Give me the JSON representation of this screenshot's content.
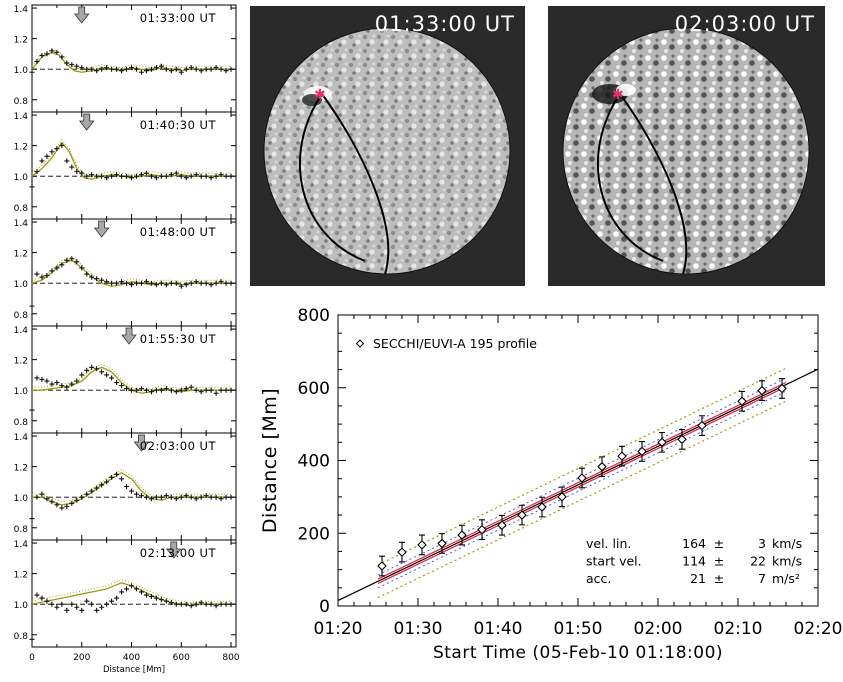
{
  "colors": {
    "profile_marker": "#111111",
    "fit_curve": "#9a9a10",
    "arrow": "#a8a8a8",
    "fit_line": "#000000",
    "band_red": "#e0304a",
    "band_blue": "#4060d0",
    "band_olive": "#9a9a10",
    "sun_background": "#2a2a2a",
    "source_marker": "#e8306a"
  },
  "images": [
    {
      "timestamp": "01:33:00 UT"
    },
    {
      "timestamp": "02:03:00 UT"
    }
  ],
  "chart_data": [
    {
      "type": "scatter",
      "panel": "profile",
      "timestamp": "01:33:00 UT",
      "xlim": [
        0,
        820
      ],
      "ylim": [
        0.72,
        1.42
      ],
      "yticks": [
        "1.4",
        "1.2",
        "1.0",
        "0.8"
      ],
      "xticks": [],
      "xlabel": "",
      "arrow_x": 200,
      "points_x": [
        0,
        20,
        40,
        60,
        80,
        100,
        120,
        140,
        160,
        180,
        200,
        220,
        240,
        260,
        280,
        300,
        320,
        340,
        360,
        380,
        400,
        420,
        440,
        460,
        480,
        500,
        520,
        540,
        560,
        580,
        600,
        620,
        640,
        660,
        680,
        700,
        720,
        740,
        760,
        780,
        800
      ],
      "points_y": [
        0.98,
        1.05,
        1.09,
        1.1,
        1.12,
        1.11,
        1.08,
        1.04,
        1.03,
        1.02,
        1.01,
        1.0,
        1.0,
        0.99,
        1.0,
        1.01,
        1.0,
        1.0,
        0.99,
        1.0,
        1.01,
        1.0,
        0.98,
        0.99,
        1.0,
        1.01,
        1.02,
        1.0,
        0.99,
        1.0,
        0.98,
        1.0,
        1.01,
        1.0,
        0.99,
        1.0,
        1.0,
        1.01,
        1.0,
        0.99,
        1.0
      ],
      "fit_x": [
        0,
        40,
        80,
        110,
        140,
        170,
        200,
        240,
        280,
        320,
        360,
        400,
        440,
        480,
        520,
        560,
        600,
        640,
        680,
        720,
        760,
        800
      ],
      "fit_y": [
        1.0,
        1.08,
        1.11,
        1.09,
        1.03,
        0.99,
        0.98,
        0.99,
        1.01,
        1.0,
        0.99,
        1.01,
        1.0,
        0.99,
        1.01,
        1.0,
        0.99,
        1.0,
        1.0,
        1.0,
        1.0,
        1.0
      ]
    },
    {
      "type": "scatter",
      "panel": "profile",
      "timestamp": "01:40:30 UT",
      "xlim": [
        0,
        820
      ],
      "ylim": [
        0.72,
        1.42
      ],
      "yticks": [
        "1.4",
        "1.2",
        "1.0",
        "0.8"
      ],
      "xticks": [],
      "xlabel": "",
      "arrow_x": 220,
      "points_x": [
        0,
        20,
        40,
        60,
        80,
        100,
        120,
        140,
        160,
        180,
        200,
        220,
        240,
        260,
        280,
        300,
        320,
        340,
        360,
        380,
        400,
        420,
        440,
        460,
        480,
        500,
        520,
        540,
        560,
        580,
        600,
        620,
        640,
        660,
        680,
        700,
        720,
        740,
        760,
        780,
        800
      ],
      "points_y": [
        0.93,
        1.03,
        1.1,
        1.13,
        1.16,
        1.18,
        1.2,
        1.1,
        1.06,
        1.03,
        1.02,
        1.0,
        1.01,
        1.0,
        1.0,
        0.99,
        1.0,
        1.01,
        1.0,
        1.0,
        0.99,
        1.0,
        1.01,
        1.02,
        1.0,
        0.99,
        1.0,
        1.0,
        1.01,
        1.02,
        1.0,
        0.99,
        1.0,
        1.01,
        1.0,
        1.0,
        0.99,
        1.0,
        1.01,
        1.0,
        1.0
      ],
      "fit_x": [
        0,
        40,
        80,
        120,
        150,
        180,
        210,
        240,
        280,
        320,
        360,
        400,
        440,
        480,
        520,
        560,
        600,
        640,
        680,
        720,
        760,
        800
      ],
      "fit_y": [
        1.0,
        1.05,
        1.12,
        1.22,
        1.16,
        1.05,
        0.99,
        0.98,
        1.0,
        1.01,
        1.0,
        0.99,
        1.0,
        1.01,
        1.0,
        1.0,
        1.01,
        1.0,
        1.0,
        1.0,
        1.0,
        1.0
      ]
    },
    {
      "type": "scatter",
      "panel": "profile",
      "timestamp": "01:48:00 UT",
      "xlim": [
        0,
        820
      ],
      "ylim": [
        0.72,
        1.42
      ],
      "yticks": [
        "1.4",
        "1.2",
        "1.0",
        "0.8"
      ],
      "xticks": [],
      "xlabel": "",
      "arrow_x": 280,
      "points_x": [
        0,
        20,
        40,
        60,
        80,
        100,
        120,
        140,
        160,
        180,
        200,
        220,
        240,
        260,
        280,
        300,
        320,
        340,
        360,
        380,
        400,
        420,
        440,
        460,
        480,
        500,
        520,
        540,
        560,
        580,
        600,
        620,
        640,
        660,
        680,
        700,
        720,
        740,
        760,
        780,
        800
      ],
      "points_y": [
        0.85,
        1.06,
        1.04,
        1.05,
        1.08,
        1.1,
        1.12,
        1.15,
        1.16,
        1.14,
        1.1,
        1.06,
        1.04,
        1.03,
        1.02,
        1.01,
        1.0,
        1.0,
        1.01,
        1.0,
        0.99,
        1.0,
        1.0,
        1.01,
        1.0,
        0.99,
        1.0,
        0.99,
        1.0,
        1.0,
        0.98,
        0.99,
        1.0,
        1.01,
        1.0,
        1.0,
        0.99,
        1.0,
        1.01,
        1.0,
        1.0
      ],
      "fit_x": [
        0,
        40,
        80,
        120,
        160,
        200,
        240,
        280,
        320,
        360,
        400,
        440,
        480,
        520,
        560,
        600,
        640,
        680,
        720,
        760,
        800
      ],
      "fit_y": [
        1.0,
        1.02,
        1.07,
        1.13,
        1.15,
        1.1,
        1.04,
        1.0,
        0.98,
        0.99,
        1.01,
        1.0,
        0.99,
        1.0,
        1.0,
        0.99,
        1.0,
        1.0,
        1.0,
        1.0,
        1.0
      ]
    },
    {
      "type": "scatter",
      "panel": "profile",
      "timestamp": "01:55:30 UT",
      "xlim": [
        0,
        820
      ],
      "ylim": [
        0.72,
        1.42
      ],
      "yticks": [
        "1.4",
        "1.2",
        "1.0",
        "0.8"
      ],
      "xticks": [],
      "xlabel": "",
      "arrow_x": 390,
      "points_x": [
        0,
        20,
        40,
        60,
        80,
        100,
        120,
        140,
        160,
        180,
        200,
        220,
        240,
        260,
        280,
        300,
        320,
        340,
        360,
        380,
        400,
        420,
        440,
        460,
        480,
        500,
        520,
        540,
        560,
        580,
        600,
        620,
        640,
        660,
        680,
        700,
        720,
        740,
        760,
        780,
        800
      ],
      "points_y": [
        0.87,
        1.08,
        1.07,
        1.06,
        1.04,
        1.05,
        1.03,
        1.02,
        1.04,
        1.06,
        1.1,
        1.13,
        1.15,
        1.14,
        1.12,
        1.1,
        1.08,
        1.05,
        1.03,
        1.01,
        1.0,
        1.0,
        1.01,
        1.0,
        0.99,
        1.0,
        1.0,
        1.01,
        1.0,
        0.99,
        1.0,
        1.01,
        1.02,
        1.0,
        0.99,
        1.0,
        1.0,
        0.98,
        1.0,
        1.0,
        1.0
      ],
      "fit_x": [
        0,
        40,
        80,
        120,
        160,
        200,
        240,
        280,
        320,
        360,
        400,
        440,
        480,
        520,
        560,
        600,
        640,
        680,
        720,
        760,
        800
      ],
      "fit_y": [
        1.0,
        1.0,
        1.01,
        1.02,
        1.03,
        1.06,
        1.12,
        1.15,
        1.12,
        1.05,
        1.0,
        0.98,
        0.99,
        1.01,
        1.0,
        0.99,
        1.0,
        1.0,
        1.0,
        1.0,
        1.0
      ]
    },
    {
      "type": "scatter",
      "panel": "profile",
      "timestamp": "02:03:00 UT",
      "xlim": [
        0,
        820
      ],
      "ylim": [
        0.72,
        1.42
      ],
      "yticks": [
        "1.4",
        "1.2",
        "1.0",
        "0.8"
      ],
      "xticks": [],
      "xlabel": "",
      "arrow_x": 440,
      "points_x": [
        0,
        20,
        40,
        60,
        80,
        100,
        120,
        140,
        160,
        180,
        200,
        220,
        240,
        260,
        280,
        300,
        320,
        340,
        360,
        380,
        400,
        420,
        440,
        460,
        480,
        500,
        520,
        540,
        560,
        580,
        600,
        620,
        640,
        660,
        680,
        700,
        720,
        740,
        760,
        780,
        800
      ],
      "points_y": [
        0.86,
        1.0,
        1.02,
        0.99,
        0.97,
        0.95,
        0.93,
        0.94,
        0.96,
        0.98,
        1.0,
        1.02,
        1.04,
        1.06,
        1.08,
        1.1,
        1.13,
        1.15,
        1.12,
        1.07,
        1.04,
        1.02,
        1.01,
        1.0,
        0.99,
        1.0,
        1.0,
        1.01,
        1.0,
        0.99,
        1.0,
        1.01,
        1.0,
        0.99,
        1.0,
        1.01,
        1.0,
        1.0,
        0.99,
        1.0,
        1.0
      ],
      "fit_x": [
        0,
        40,
        80,
        120,
        160,
        200,
        240,
        280,
        320,
        360,
        400,
        440,
        480,
        520,
        560,
        600,
        640,
        680,
        720,
        760,
        800
      ],
      "fit_y": [
        1.0,
        1.0,
        0.97,
        0.95,
        0.96,
        0.99,
        1.03,
        1.08,
        1.12,
        1.16,
        1.12,
        1.04,
        0.99,
        0.98,
        1.0,
        1.0,
        1.0,
        1.0,
        1.0,
        1.0,
        1.0
      ]
    },
    {
      "type": "scatter",
      "panel": "profile",
      "timestamp": "02:13:00 UT",
      "xlim": [
        0,
        820
      ],
      "ylim": [
        0.72,
        1.42
      ],
      "yticks": [
        "1.4",
        "1.2",
        "1.0",
        "0.8"
      ],
      "xticks": [
        "0",
        "200",
        "400",
        "600",
        "800"
      ],
      "xlabel": "Distance [Mm]",
      "arrow_x": 570,
      "points_x": [
        0,
        20,
        40,
        60,
        80,
        100,
        120,
        140,
        160,
        180,
        200,
        220,
        240,
        260,
        280,
        300,
        320,
        340,
        360,
        380,
        400,
        420,
        440,
        460,
        480,
        500,
        520,
        540,
        560,
        580,
        600,
        620,
        640,
        660,
        680,
        700,
        720,
        740,
        760,
        780,
        800
      ],
      "points_y": [
        0.77,
        1.06,
        1.04,
        1.02,
        1.0,
        0.98,
        1.0,
        0.96,
        1.0,
        0.98,
        0.96,
        1.02,
        1.0,
        0.96,
        0.98,
        1.0,
        1.02,
        1.04,
        1.08,
        1.1,
        1.12,
        1.1,
        1.08,
        1.06,
        1.05,
        1.04,
        1.03,
        1.02,
        1.01,
        1.0,
        1.0,
        1.0,
        0.99,
        1.0,
        1.01,
        1.0,
        1.0,
        0.99,
        1.0,
        1.0,
        1.0
      ],
      "fit_x": [
        0,
        60,
        120,
        180,
        240,
        300,
        360,
        400,
        440,
        480,
        520,
        560,
        600,
        640,
        680,
        720,
        760,
        800
      ],
      "fit_y": [
        1.0,
        1.02,
        1.04,
        1.06,
        1.08,
        1.1,
        1.14,
        1.12,
        1.09,
        1.06,
        1.03,
        1.01,
        1.0,
        0.99,
        1.0,
        1.0,
        1.0,
        1.0
      ]
    },
    {
      "type": "scatter",
      "panel": "distance-time",
      "xlabel": "Start Time (05-Feb-10 01:18:00)",
      "ylabel": "Distance [Mm]",
      "xlim": [
        20,
        140
      ],
      "ylim": [
        0,
        800
      ],
      "xticks": [
        {
          "v": 20,
          "label": "01:20"
        },
        {
          "v": 30,
          "label": "01:30"
        },
        {
          "v": 40,
          "label": "01:40"
        },
        {
          "v": 50,
          "label": "01:50"
        },
        {
          "v": 60,
          "label": "02:00"
        },
        {
          "v": 70,
          "label": "02:10"
        },
        {
          "v": 80,
          "label": "02:20"
        }
      ],
      "yticks": [
        "0",
        "200",
        "400",
        "600",
        "800"
      ],
      "legend": {
        "label": "SECCHI/EUVI-A 195 profile",
        "position": "top-left"
      },
      "x_minutes": [
        25.5,
        28,
        30.5,
        33,
        35.5,
        38,
        40.5,
        43,
        45.5,
        48,
        50.5,
        53,
        55.5,
        58,
        60.5,
        63,
        65.5,
        70.5,
        73,
        75.5
      ],
      "y": [
        110,
        148,
        168,
        172,
        195,
        210,
        222,
        250,
        272,
        300,
        352,
        383,
        412,
        425,
        450,
        458,
        496,
        563,
        592,
        598
      ],
      "y_err": [
        27,
        27,
        27,
        27,
        27,
        27,
        27,
        27,
        27,
        27,
        27,
        27,
        27,
        27,
        27,
        27,
        27,
        27,
        27,
        27
      ],
      "fit_line": {
        "intercept_mm": 15,
        "slope_mm_per_min": 10.6,
        "x_range": [
          20,
          80
        ]
      },
      "band_olive_offset": 45,
      "band_blue_offset": 18,
      "band_red_offset": 6,
      "annotations": [
        {
          "label": "vel. lin.",
          "value": "164",
          "pm": "±",
          "err": "3",
          "unit": "km/s"
        },
        {
          "label": "start vel.",
          "value": "114",
          "pm": "±",
          "err": "22",
          "unit": "km/s"
        },
        {
          "label": "acc.",
          "value": "21",
          "pm": "±",
          "err": "7",
          "unit": "m/s²"
        }
      ]
    }
  ]
}
